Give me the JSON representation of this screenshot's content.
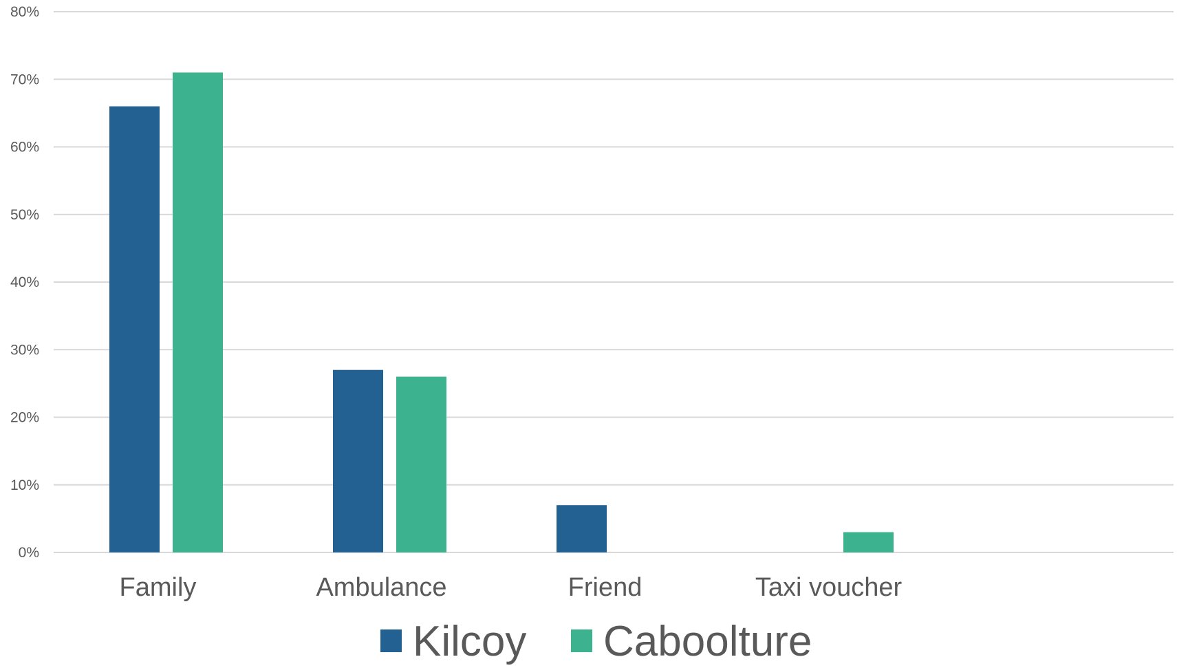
{
  "chart_data": {
    "type": "bar",
    "categories": [
      "Family",
      "Ambulance",
      "Friend",
      "Taxi voucher"
    ],
    "series": [
      {
        "name": "Kilcoy",
        "values": [
          66,
          27,
          7,
          0
        ],
        "color": "#236192"
      },
      {
        "name": "Caboolture",
        "values": [
          71,
          26,
          0,
          3
        ],
        "color": "#3cb28f"
      }
    ],
    "yticks": [
      "0%",
      "10%",
      "20%",
      "30%",
      "40%",
      "50%",
      "60%",
      "70%",
      "80%"
    ],
    "ylim": [
      0,
      80
    ],
    "grid": true,
    "legend": "bottom"
  }
}
